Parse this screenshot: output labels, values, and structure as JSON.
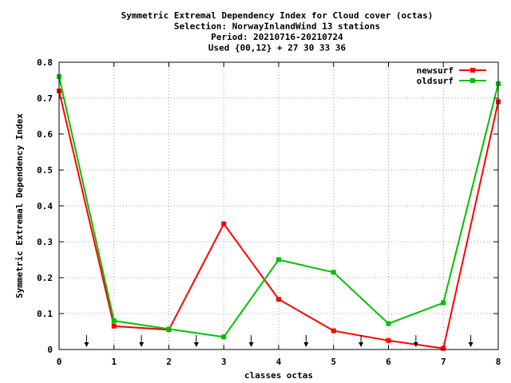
{
  "chart_data": {
    "type": "line",
    "title_lines": [
      "Symmetric Extremal Dependency Index  for Cloud cover (octas)",
      "Selection: NorwayInlandWind     13 stations",
      "Period: 20210716-20210724",
      "Used {00,12} + 27 30 33 36"
    ],
    "xlabel": "classes octas",
    "ylabel": "Symmetric Extremal Dependency Index",
    "xlim": [
      0,
      8
    ],
    "ylim": [
      0,
      0.8
    ],
    "x_ticks": [
      "0",
      "1",
      "2",
      "3",
      "4",
      "5",
      "6",
      "7",
      "8"
    ],
    "y_ticks": [
      "0",
      "0.1",
      "0.2",
      "0.3",
      "0.4",
      "0.5",
      "0.6",
      "0.7",
      "0.8"
    ],
    "grid": true,
    "legend_position": "top-right",
    "markers_x": [
      0.5,
      1.5,
      2.5,
      3.5,
      4.5,
      5.5,
      6.5,
      7.5
    ],
    "series": [
      {
        "name": "newsurf",
        "color": "#ff0000",
        "x": [
          0,
          1,
          2,
          3,
          4,
          5,
          6,
          7,
          8
        ],
        "values": [
          0.72,
          0.065,
          0.055,
          0.35,
          0.14,
          0.052,
          0.025,
          0.003,
          0.69
        ]
      },
      {
        "name": "oldsurf",
        "color": "#00c000",
        "x": [
          0,
          1,
          2,
          3,
          4,
          5,
          6,
          7,
          8
        ],
        "values": [
          0.76,
          0.08,
          0.057,
          0.035,
          0.25,
          0.215,
          0.072,
          0.13,
          0.74
        ]
      }
    ]
  }
}
